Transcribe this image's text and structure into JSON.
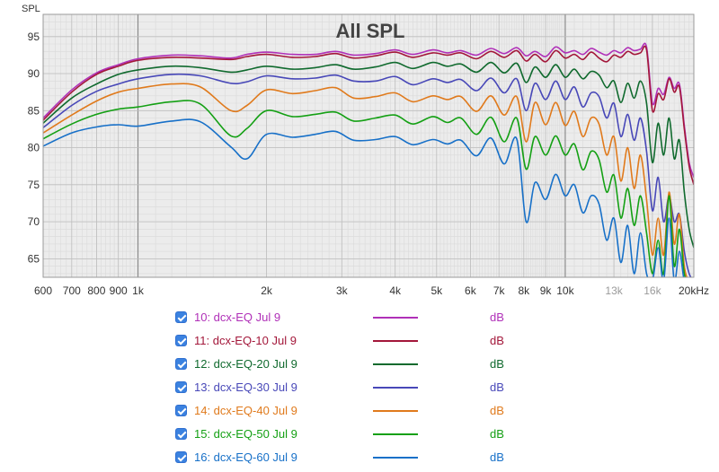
{
  "chart_data": {
    "type": "line",
    "title": "All SPL",
    "ylabel": "SPL",
    "xlabel": "",
    "x_scale": "log",
    "xlim": [
      600,
      20000
    ],
    "ylim": [
      62.5,
      98
    ],
    "grid": true,
    "legend_placement": "bottom",
    "x_ticks": [
      {
        "v": 600,
        "label": "600"
      },
      {
        "v": 700,
        "label": "700"
      },
      {
        "v": 800,
        "label": "800"
      },
      {
        "v": 900,
        "label": "900"
      },
      {
        "v": 1000,
        "label": "1k"
      },
      {
        "v": 2000,
        "label": "2k"
      },
      {
        "v": 3000,
        "label": "3k"
      },
      {
        "v": 4000,
        "label": "4k"
      },
      {
        "v": 5000,
        "label": "5k"
      },
      {
        "v": 6000,
        "label": "6k"
      },
      {
        "v": 7000,
        "label": "7k"
      },
      {
        "v": 8000,
        "label": "8k"
      },
      {
        "v": 9000,
        "label": "9k"
      },
      {
        "v": 10000,
        "label": "10k"
      },
      {
        "v": 13000,
        "label": "13k"
      },
      {
        "v": 16000,
        "label": "16k"
      },
      {
        "v": 20000,
        "label": "20kHz"
      }
    ],
    "y_ticks": [
      65,
      70,
      75,
      80,
      85,
      90,
      95
    ],
    "x": [
      600,
      700,
      800,
      900,
      1000,
      1200,
      1400,
      1650,
      1800,
      2000,
      2300,
      2600,
      2900,
      3200,
      3600,
      4000,
      4400,
      4900,
      5300,
      5700,
      6200,
      6700,
      7200,
      7700,
      8100,
      8500,
      9000,
      9500,
      10000,
      10500,
      11000,
      11500,
      12000,
      12500,
      13000,
      13500,
      14000,
      14500,
      15000,
      15500,
      16000,
      16500,
      17000,
      17500,
      18000,
      18500,
      19000,
      19500,
      20000
    ],
    "series": [
      {
        "name": "10: dcx-EQ Jul 9",
        "unit": "dB",
        "color": "#b030b8",
        "values": [
          84,
          87.8,
          90.1,
          91.2,
          92,
          92.5,
          92.4,
          92.1,
          92.6,
          92.9,
          92.6,
          92.6,
          93,
          92.5,
          92.7,
          93.2,
          92.6,
          93.2,
          92.8,
          93.1,
          92.5,
          93.4,
          92.7,
          93.5,
          92.4,
          93,
          92.3,
          93.6,
          92.8,
          93.1,
          92.6,
          93.4,
          92.9,
          92.5,
          93.1,
          92.8,
          93.5,
          93.1,
          93.3,
          93.6,
          86,
          88,
          87.2,
          89.5,
          88,
          88.6,
          83,
          78,
          76
        ]
      },
      {
        "name": "11: dcx-EQ-10 Jul 9",
        "unit": "dB",
        "color": "#a3173a",
        "values": [
          83.7,
          87.5,
          89.9,
          91,
          91.8,
          92.2,
          92.1,
          91.9,
          92.3,
          92.6,
          92.2,
          92.3,
          92.7,
          92.1,
          92.4,
          92.9,
          92.2,
          92.8,
          92.5,
          92.8,
          92,
          93,
          92.2,
          93.1,
          91.7,
          92.6,
          91.6,
          93.1,
          92.1,
          92.6,
          91.9,
          92.9,
          92.1,
          91.6,
          92.5,
          92.2,
          93,
          92.6,
          92.8,
          93.2,
          85,
          87.3,
          86.5,
          89.3,
          87.5,
          88.2,
          82.5,
          77.5,
          75
        ]
      },
      {
        "name": "12: dcx-EQ-20 Jul 9",
        "unit": "dB",
        "color": "#106a2e",
        "values": [
          83.3,
          86.7,
          88.6,
          89.9,
          90.5,
          91,
          90.8,
          90.2,
          90.5,
          91,
          90.6,
          90.8,
          91.2,
          90.6,
          90.9,
          91.5,
          90.7,
          91.5,
          91,
          91.3,
          90.2,
          91.5,
          90.1,
          91.4,
          88.8,
          90.9,
          89.5,
          91.2,
          89.5,
          90.6,
          89.3,
          90.3,
          89.8,
          88.1,
          89,
          86.1,
          88.7,
          86.7,
          89,
          86,
          78,
          83.3,
          79,
          84,
          78.5,
          81,
          74,
          69,
          66.5
        ]
      },
      {
        "name": "13: dcx-EQ-30 Jul 9",
        "unit": "dB",
        "color": "#4848b8",
        "values": [
          82.7,
          85.7,
          87.6,
          88.6,
          89.3,
          89.9,
          89.7,
          88.7,
          88.9,
          89.7,
          89.3,
          89.4,
          89.8,
          89,
          89,
          89.6,
          88.5,
          89.3,
          88.8,
          89.2,
          87.7,
          89.4,
          87.4,
          89.3,
          85,
          88.7,
          86.5,
          89,
          86.5,
          88.2,
          85.5,
          87.4,
          86.9,
          84,
          86,
          81.5,
          84.5,
          81,
          84,
          79.5,
          71.5,
          76,
          70,
          73.5,
          70,
          71,
          66,
          63,
          62
        ]
      },
      {
        "name": "14: dcx-EQ-40 Jul 9",
        "unit": "dB",
        "color": "#e07a1c",
        "values": [
          82,
          84.4,
          86.3,
          87.5,
          88,
          88.6,
          88.2,
          85,
          85.7,
          87.8,
          87.3,
          87.7,
          88.1,
          86.7,
          86.9,
          87.4,
          86.2,
          87,
          86.5,
          86.9,
          84.9,
          87,
          84.4,
          86.9,
          80.8,
          86.1,
          83.1,
          86.1,
          83,
          84.9,
          81.5,
          84,
          83.2,
          79,
          81.5,
          75.5,
          80,
          74.5,
          79,
          73,
          65.5,
          70.5,
          65.5,
          74,
          67,
          71,
          64,
          62,
          62
        ]
      },
      {
        "name": "15: dcx-EQ-50 Jul 9",
        "unit": "dB",
        "color": "#14a014",
        "values": [
          81.2,
          83.2,
          84.5,
          85.2,
          85.5,
          86.2,
          85.9,
          81.6,
          82.6,
          85,
          84.2,
          84.5,
          84.8,
          83.6,
          84,
          84.4,
          83.2,
          84.2,
          83.4,
          84,
          81.8,
          84.1,
          80.8,
          84,
          77.1,
          81.5,
          79,
          81.6,
          79,
          80.5,
          77,
          79.5,
          78.4,
          74,
          76.3,
          70.5,
          74.5,
          69.5,
          73.5,
          68.5,
          63,
          67.5,
          63,
          73.5,
          64,
          69,
          63,
          62,
          62
        ]
      },
      {
        "name": "16: dcx-EQ-60 Jul 9",
        "unit": "dB",
        "color": "#1770c8",
        "values": [
          80.2,
          82,
          82.8,
          83.1,
          82.9,
          83.6,
          83.5,
          80.1,
          78.5,
          81.8,
          81.4,
          81.8,
          82.2,
          81,
          81.1,
          81.5,
          80.4,
          81.1,
          80.5,
          81,
          78.9,
          81.3,
          77.8,
          81.2,
          70,
          75.3,
          73,
          76.4,
          73.5,
          75,
          71.2,
          73.5,
          72.4,
          67.5,
          70.5,
          64.5,
          69.5,
          63,
          68.5,
          63,
          62,
          66.5,
          62,
          70.5,
          62,
          66,
          62,
          62,
          62
        ]
      }
    ]
  }
}
